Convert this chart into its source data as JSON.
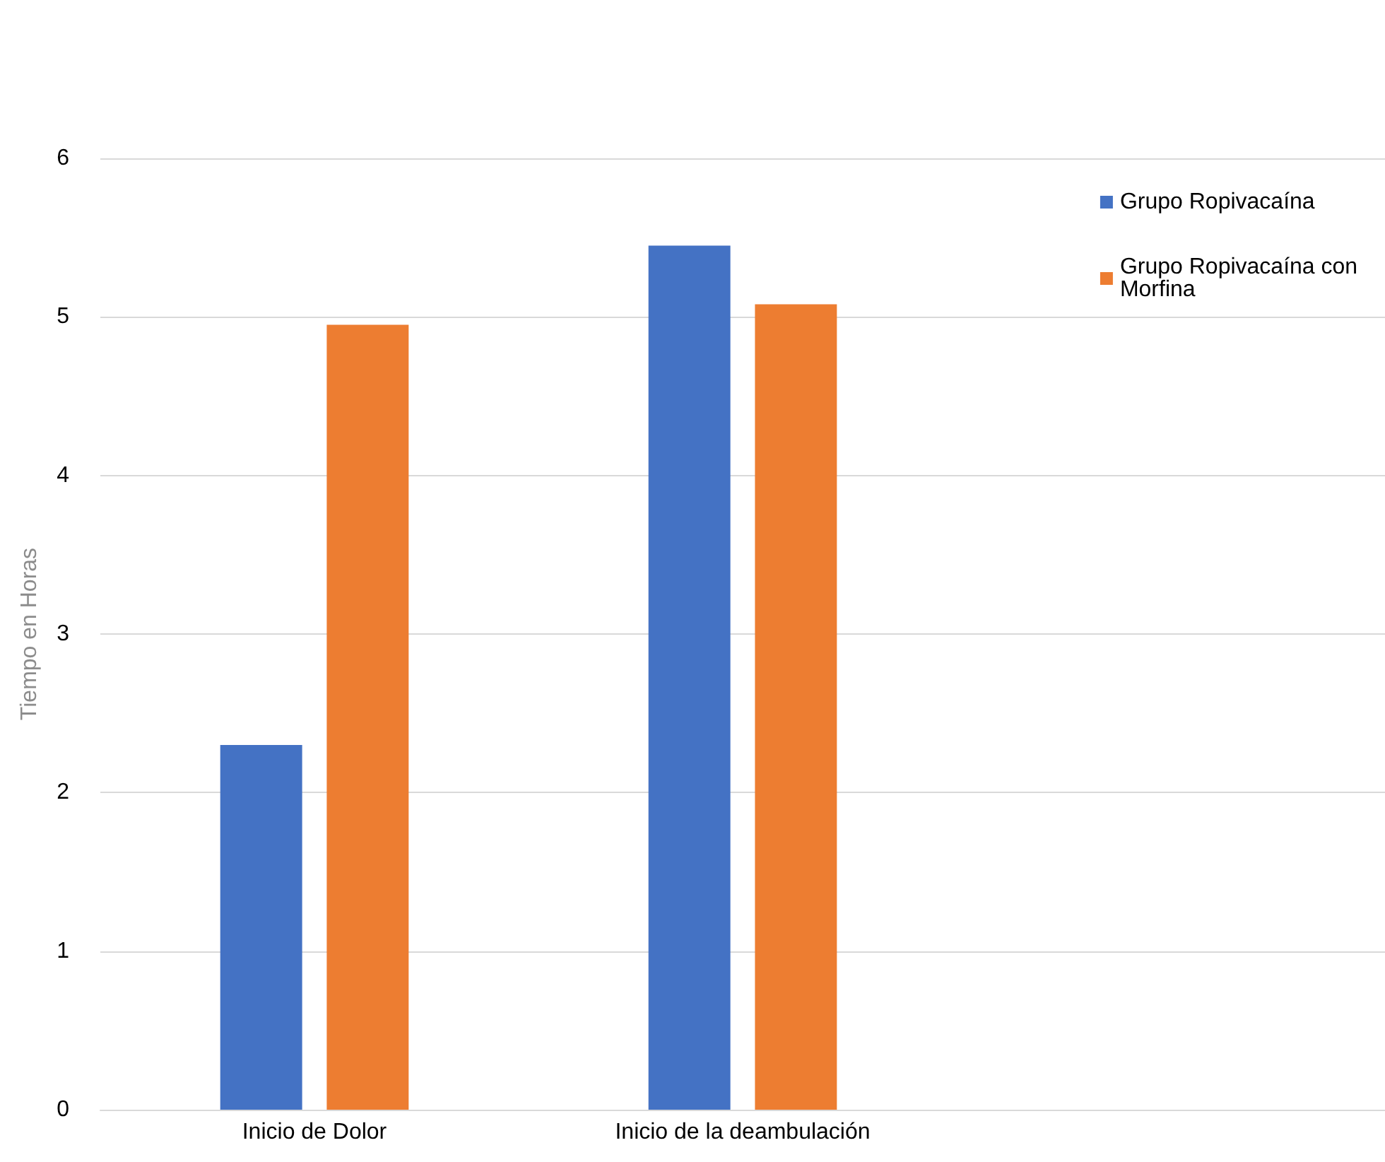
{
  "chart_data": {
    "type": "bar",
    "ylabel": "Tiempo en Horas",
    "categories": [
      "Inicio de Dolor",
      "Inicio de la deambulación",
      null
    ],
    "series": [
      {
        "name": "Grupo Ropivacaína",
        "color": "#4472c4",
        "values": [
          2.3,
          5.45,
          null
        ]
      },
      {
        "name": "Grupo Ropivacaína con Morfina",
        "color": "#ed7d31",
        "values": [
          4.95,
          5.08,
          null
        ]
      }
    ],
    "ylim": [
      0,
      6
    ],
    "yticks": [
      0,
      1,
      2,
      3,
      4,
      5,
      6
    ],
    "grid": "y",
    "legend": "top right"
  }
}
